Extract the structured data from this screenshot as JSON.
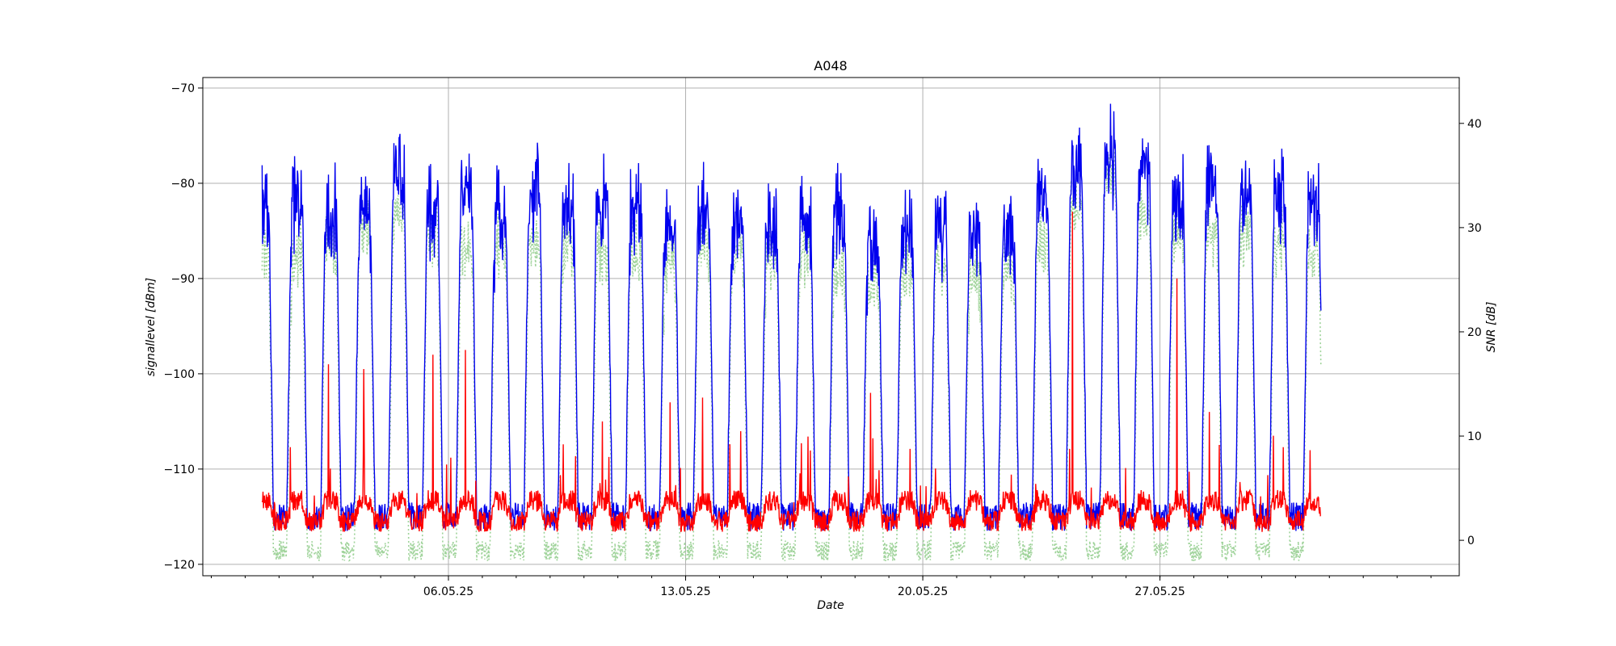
{
  "chart_data": {
    "type": "line",
    "title": "A048",
    "xlabel": "Date",
    "ylabel": "signallevel [dBm]",
    "ylabel_right": "SNR [dB]",
    "x_axis": {
      "type": "date",
      "range": [
        "2025-04-28T18:00",
        "2025-06-04T20:00"
      ],
      "ticks": [
        {
          "date": "2025-05-06",
          "label": "06.05.25"
        },
        {
          "date": "2025-05-13",
          "label": "13.05.25"
        },
        {
          "date": "2025-05-20",
          "label": "20.05.25"
        },
        {
          "date": "2025-05-27",
          "label": "27.05.25"
        }
      ],
      "minor_ticks": "daily"
    },
    "y_left": {
      "range": [
        -121.2,
        -68.9
      ],
      "ticks": [
        -70,
        -80,
        -90,
        -100,
        -110,
        -120
      ]
    },
    "y_right": {
      "range": [
        -3.4,
        44.4
      ],
      "ticks": [
        0,
        10,
        20,
        30,
        40
      ]
    },
    "grid": true,
    "series": [
      {
        "axis": "left",
        "style": "solid",
        "color": "#0000ee",
        "data_start": "2025-04-30T12:00",
        "data_end": "2025-05-31T18:00",
        "period_hours": 24,
        "daily_peak_dbm": [
          -78,
          -79,
          -80,
          -80,
          -76,
          -80,
          -77,
          -80,
          -78,
          -79,
          -79,
          -79,
          -82,
          -80,
          -81,
          -82,
          -81,
          -80,
          -83,
          -82,
          -82,
          -83,
          -82,
          -79,
          -75,
          -74,
          -76,
          -79,
          -77,
          -78,
          -78,
          -79
        ],
        "trough_dbm": -115
      },
      {
        "axis": "right",
        "style": "dotted",
        "color": "#9fd39a",
        "data_start": "2025-04-30T12:00",
        "data_end": "2025-05-31T18:00",
        "period_hours": 24,
        "daily_peak_db": [
          30,
          29,
          30,
          31,
          33,
          31,
          30,
          31,
          31,
          30,
          29,
          30,
          28,
          30,
          29,
          29,
          30,
          28,
          27,
          28,
          28,
          27,
          28,
          30,
          34,
          37,
          33,
          32,
          31,
          32,
          31,
          30
        ],
        "trough_db": -1
      },
      {
        "axis": "left",
        "style": "solid",
        "color": "#ff0000",
        "data_start": "2025-04-30T12:00",
        "data_end": "2025-05-31T18:00",
        "baseline_dbm": -114.5,
        "spikes": [
          {
            "date": "2025-05-02T11:00",
            "value": -99
          },
          {
            "date": "2025-05-03T12:00",
            "value": -99.5
          },
          {
            "date": "2025-05-05T13:00",
            "value": -98
          },
          {
            "date": "2025-05-06T12:00",
            "value": -97.5
          },
          {
            "date": "2025-05-10T13:00",
            "value": -105
          },
          {
            "date": "2025-05-12T13:00",
            "value": -103
          },
          {
            "date": "2025-05-13T12:00",
            "value": -102.5
          },
          {
            "date": "2025-05-18T11:00",
            "value": -102
          },
          {
            "date": "2025-05-24T10:00",
            "value": -83
          },
          {
            "date": "2025-05-27T12:00",
            "value": -90
          },
          {
            "date": "2025-05-28T11:00",
            "value": -104
          }
        ]
      }
    ]
  }
}
